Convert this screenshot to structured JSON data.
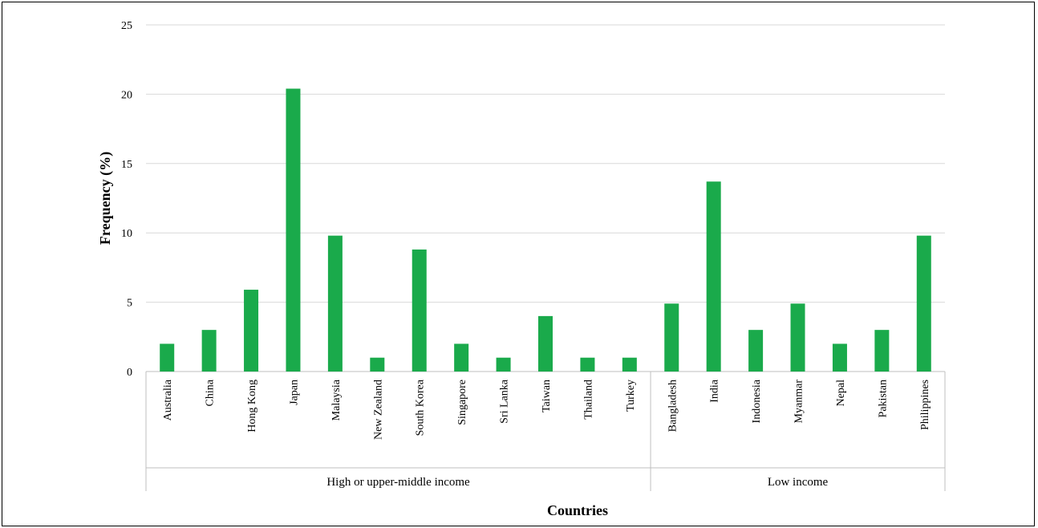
{
  "chart_data": {
    "type": "bar",
    "title": "",
    "xlabel": "Countries",
    "ylabel": "Frequency (%)",
    "ylim": [
      0,
      25
    ],
    "yticks": [
      0,
      5,
      10,
      15,
      20,
      25
    ],
    "grid": true,
    "bar_color": "#1aaa4b",
    "categories": [
      "Australia",
      "China",
      "Hong Kong",
      "Japan",
      "Malaysia",
      "New Zealand",
      "South Korea",
      "Singapore",
      "Sri Lanka",
      "Taiwan",
      "Thailand",
      "Turkey",
      "Bangladesh",
      "India",
      "Indonesia",
      "Myanmar",
      "Nepal",
      "Pakistan",
      "Philippines"
    ],
    "values": [
      2,
      3,
      5.9,
      20.4,
      9.8,
      1,
      8.8,
      2,
      1,
      4,
      1,
      1,
      4.9,
      13.7,
      3,
      4.9,
      2,
      3,
      9.8
    ],
    "groups": [
      {
        "label": "High or upper-middle income",
        "count": 12
      },
      {
        "label": "Low income",
        "count": 7
      }
    ]
  }
}
